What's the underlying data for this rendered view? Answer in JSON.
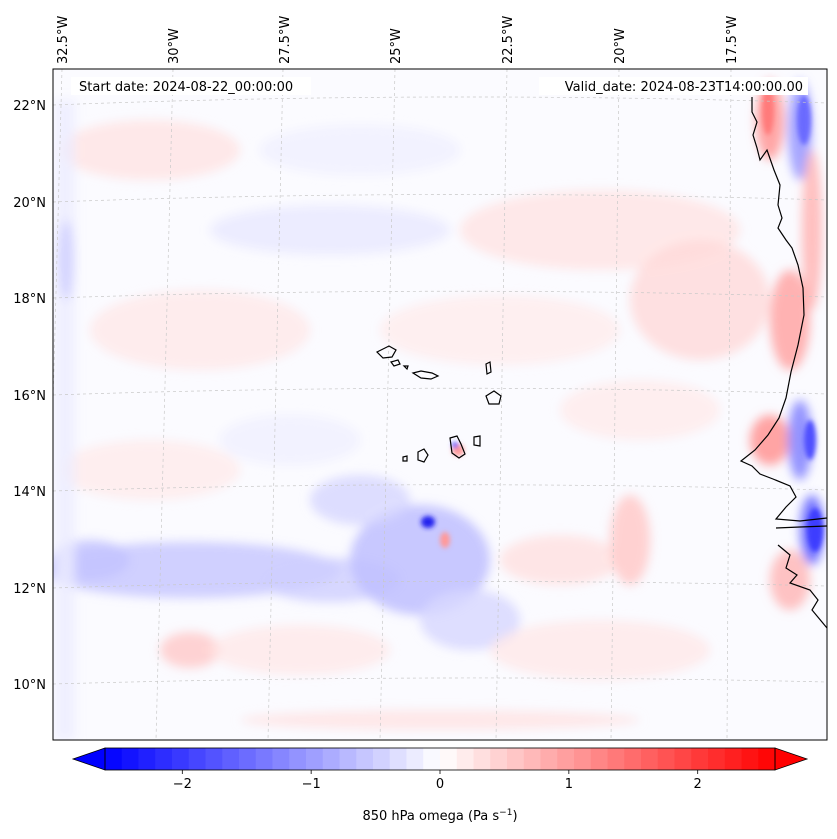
{
  "map": {
    "start_date_label": "Start date: 2024-08-22_00:00:00",
    "valid_date_label": "Valid_date: 2024-08-23T14:00:00.00",
    "lon_labels": [
      "32.5°W",
      "30°W",
      "27.5°W",
      "25°W",
      "22.5°W",
      "20°W",
      "17.5°W"
    ],
    "lat_labels": [
      "22°N",
      "20°N",
      "18°N",
      "16°N",
      "14°N",
      "12°N",
      "10°N"
    ],
    "extent": {
      "lon_min": -33.0,
      "lon_max": -15.4,
      "lat_min": 8.8,
      "lat_max": 22.8
    },
    "features": [
      "Cabo Verde islands",
      "West African coastline (Mauritania, Senegal, Gambia, Guinea-Bissau)"
    ]
  },
  "colorbar": {
    "label": "850 hPa omega (Pa s",
    "label_superscript": "−1",
    "label_suffix": ")",
    "ticks": [
      "−2",
      "−1",
      "0",
      "1",
      "2"
    ],
    "tick_values": [
      -2,
      -1,
      0,
      1,
      2
    ],
    "range": [
      -2.6,
      2.6
    ],
    "colormap": "bwr",
    "color_min": "#0000ff",
    "color_mid": "#ffffff",
    "color_max": "#ff0000"
  }
}
